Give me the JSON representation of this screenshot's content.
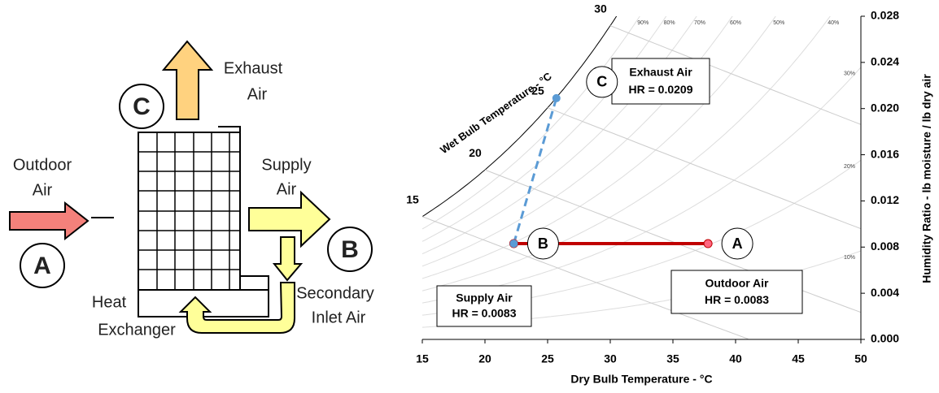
{
  "diagram": {
    "outdoor_air": [
      "Outdoor",
      "Air"
    ],
    "exhaust_air": [
      "Exhaust",
      "Air"
    ],
    "supply_air": [
      "Supply",
      "Air"
    ],
    "secondary_inlet_air": [
      "Secondary",
      "Inlet Air"
    ],
    "heat_exchanger": [
      "Heat",
      "Exchanger"
    ],
    "points": [
      "A",
      "B",
      "C"
    ]
  },
  "chart_data": {
    "type": "line",
    "xlabel": "Dry Bulb Temperature - °C",
    "ylabel": "Humidity Ratio - lb moisture / lb dry air",
    "wet_bulb_label": "Wet Bulb Temperature - °C",
    "xlim": [
      15,
      50
    ],
    "xticks": [
      15,
      20,
      25,
      30,
      35,
      40,
      45,
      50
    ],
    "ylim": [
      0,
      0.028
    ],
    "yticks": [
      {
        "value": 0,
        "label": "0.000"
      },
      {
        "value": 0.004,
        "label": "0.004"
      },
      {
        "value": 0.008,
        "label": "0.008"
      },
      {
        "value": 0.012,
        "label": "0.012"
      },
      {
        "value": 0.016,
        "label": "0.016"
      },
      {
        "value": 0.02,
        "label": "0.020"
      },
      {
        "value": 0.024,
        "label": "0.024"
      },
      {
        "value": 0.028,
        "label": "0.028"
      }
    ],
    "wet_bulb_lines": [
      15,
      20,
      25,
      30
    ],
    "rh_lines": [
      {
        "value": 90,
        "label": "90%"
      },
      {
        "value": 80,
        "label": "80%"
      },
      {
        "value": 70,
        "label": "70%"
      },
      {
        "value": 60,
        "label": "60%"
      },
      {
        "value": 50,
        "label": "50%"
      },
      {
        "value": 40,
        "label": "40%"
      },
      {
        "value": 30,
        "label": "30%"
      },
      {
        "value": 20,
        "label": "20%"
      },
      {
        "value": 10,
        "label": "10%"
      }
    ],
    "series": [
      {
        "color": "#c00000",
        "dashed": false,
        "x": [
          22.3,
          37.8
        ],
        "values": [
          0.0083,
          0.0083
        ],
        "labels": [
          "B",
          "A"
        ]
      },
      {
        "color": "#5b9bd5",
        "dashed": true,
        "x": [
          22.3,
          25.7
        ],
        "values": [
          0.0083,
          0.0209
        ],
        "labels": [
          null,
          "C"
        ]
      }
    ],
    "callouts": [
      {
        "title": "Exhaust Air",
        "text": "HR = 0.0209"
      },
      {
        "title": "Supply Air",
        "text": "HR = 0.0083"
      },
      {
        "title": "Outdoor Air",
        "text": "HR = 0.0083"
      }
    ]
  }
}
